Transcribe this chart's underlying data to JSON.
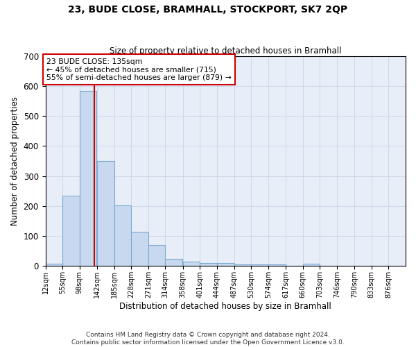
{
  "title": "23, BUDE CLOSE, BRAMHALL, STOCKPORT, SK7 2QP",
  "subtitle": "Size of property relative to detached houses in Bramhall",
  "xlabel": "Distribution of detached houses by size in Bramhall",
  "ylabel": "Number of detached properties",
  "bar_color": "#c8d8ee",
  "bar_edge_color": "#7aaad0",
  "grid_color": "#cdd8e8",
  "background_color": "#e8eef8",
  "annotation_text": "23 BUDE CLOSE: 135sqm\n← 45% of detached houses are smaller (715)\n55% of semi-detached houses are larger (879) →",
  "vline_x": 135,
  "vline_color": "#cc0000",
  "bins": [
    12,
    55,
    98,
    142,
    185,
    228,
    271,
    314,
    358,
    401,
    444,
    487,
    530,
    574,
    617,
    660,
    703,
    746,
    790,
    833,
    876
  ],
  "values": [
    8,
    235,
    583,
    350,
    202,
    115,
    70,
    25,
    15,
    10,
    10,
    5,
    5,
    5,
    0,
    8,
    0,
    0,
    0,
    0
  ],
  "footer": "Contains HM Land Registry data © Crown copyright and database right 2024.\nContains public sector information licensed under the Open Government Licence v3.0.",
  "ylim": [
    0,
    700
  ],
  "yticks": [
    0,
    100,
    200,
    300,
    400,
    500,
    600,
    700
  ]
}
